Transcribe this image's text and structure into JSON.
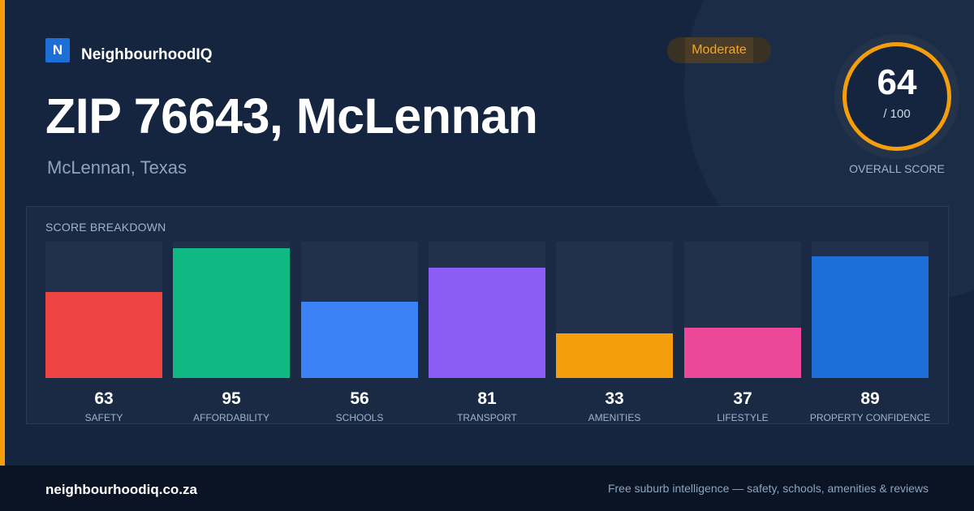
{
  "brand": {
    "logo_letter": "N",
    "name": "NeighbourhoodIQ"
  },
  "badge": {
    "label": "Moderate"
  },
  "title": "ZIP 76643, McLennan",
  "subtitle": "McLennan, Texas",
  "overall_score": {
    "value": "64",
    "max_label": "/ 100",
    "caption": "OVERALL SCORE",
    "ring_color": "#f59e0b"
  },
  "breakdown": {
    "title": "SCORE BREAKDOWN",
    "max": 100,
    "items": [
      {
        "label": "SAFETY",
        "value": 63,
        "color": "#ef4444"
      },
      {
        "label": "AFFORDABILITY",
        "value": 95,
        "color": "#10b981"
      },
      {
        "label": "SCHOOLS",
        "value": 56,
        "color": "#3b82f6"
      },
      {
        "label": "TRANSPORT",
        "value": 81,
        "color": "#8b5cf6"
      },
      {
        "label": "AMENITIES",
        "value": 33,
        "color": "#f59e0b"
      },
      {
        "label": "LIFESTYLE",
        "value": 37,
        "color": "#ec4899"
      },
      {
        "label": "PROPERTY CONFIDENCE",
        "value": 89,
        "color": "#1d6fd8"
      }
    ]
  },
  "footer": {
    "site": "neighbourhoodiq.co.za",
    "tagline": "Free suburb intelligence — safety, schools, amenities & reviews"
  },
  "colors": {
    "accent": "#f59e0b",
    "background": "#15253f",
    "brand_blue": "#1d6fd8"
  }
}
